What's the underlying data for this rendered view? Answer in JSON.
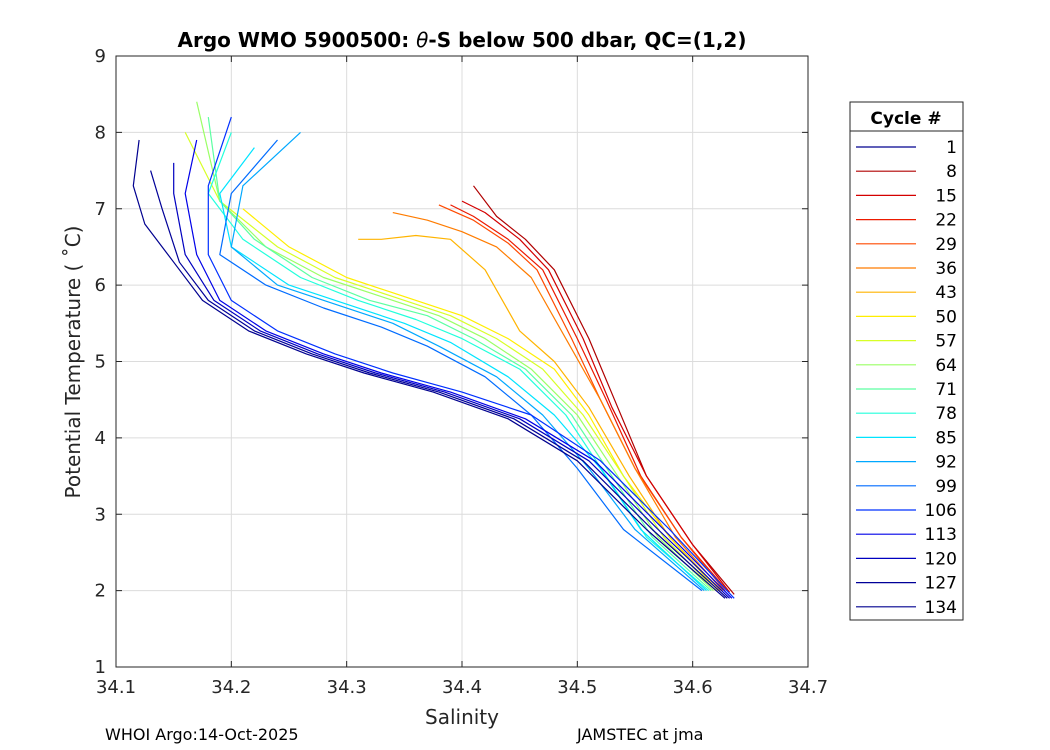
{
  "chart_data": {
    "type": "line",
    "title": "Argo WMO 5900500: θ-S below 500 dbar,  QC=(1,2)",
    "title_parts": {
      "prefix": "Argo WMO 5900500: ",
      "theta": "θ",
      "suffix": "-S below 500 dbar,  QC=(1,2)"
    },
    "xlabel": "Salinity",
    "ylabel": "Potential Temperature ( ˚C)",
    "xlim": [
      34.1,
      34.7
    ],
    "ylim": [
      1,
      9
    ],
    "xticks": [
      "34.1",
      "34.2",
      "34.3",
      "34.4",
      "34.5",
      "34.6",
      "34.7"
    ],
    "yticks": [
      "1",
      "2",
      "3",
      "4",
      "5",
      "6",
      "7",
      "8",
      "9"
    ],
    "grid": true,
    "legend_position": "right",
    "legend_title": "Cycle #",
    "legend": [
      {
        "label": "1",
        "color": "#00008f"
      },
      {
        "label": "8",
        "color": "#b00000"
      },
      {
        "label": "15",
        "color": "#d40000"
      },
      {
        "label": "22",
        "color": "#ec1a00"
      },
      {
        "label": "29",
        "color": "#ff4a00"
      },
      {
        "label": "36",
        "color": "#ff7c00"
      },
      {
        "label": "43",
        "color": "#ffb400"
      },
      {
        "label": "50",
        "color": "#ffee00"
      },
      {
        "label": "57",
        "color": "#d8ff26"
      },
      {
        "label": "64",
        "color": "#9aff65"
      },
      {
        "label": "71",
        "color": "#5cffa2"
      },
      {
        "label": "78",
        "color": "#22ffdc"
      },
      {
        "label": "85",
        "color": "#00e4ff"
      },
      {
        "label": "92",
        "color": "#00a8ff"
      },
      {
        "label": "99",
        "color": "#006cff"
      },
      {
        "label": "106",
        "color": "#0030ff"
      },
      {
        "label": "113",
        "color": "#0000e8"
      },
      {
        "label": "120",
        "color": "#0000c0"
      },
      {
        "label": "127",
        "color": "#000098"
      },
      {
        "label": "134",
        "color": "#00008f"
      }
    ],
    "series": [
      {
        "name": "8",
        "color": "#b00000",
        "x": [
          34.636,
          34.6,
          34.56,
          34.535,
          34.51,
          34.48,
          34.455,
          34.43,
          34.41
        ],
        "y": [
          1.95,
          2.6,
          3.5,
          4.4,
          5.3,
          6.2,
          6.6,
          6.9,
          7.3
        ]
      },
      {
        "name": "15",
        "color": "#d40000",
        "x": [
          34.632,
          34.6,
          34.56,
          34.53,
          34.505,
          34.475,
          34.45,
          34.42,
          34.4
        ],
        "y": [
          1.98,
          2.6,
          3.5,
          4.4,
          5.3,
          6.2,
          6.6,
          6.95,
          7.1
        ]
      },
      {
        "name": "22",
        "color": "#ec1a00",
        "x": [
          34.63,
          34.59,
          34.555,
          34.525,
          34.5,
          34.47,
          34.44,
          34.41,
          34.39
        ],
        "y": [
          2.0,
          2.7,
          3.5,
          4.5,
          5.3,
          6.2,
          6.6,
          6.9,
          7.05
        ]
      },
      {
        "name": "29",
        "color": "#ff4a00",
        "x": [
          34.628,
          34.59,
          34.55,
          34.52,
          34.495,
          34.465,
          34.44,
          34.41,
          34.38
        ],
        "y": [
          2.0,
          2.7,
          3.6,
          4.5,
          5.3,
          6.2,
          6.55,
          6.85,
          7.05
        ]
      },
      {
        "name": "36",
        "color": "#ff7c00",
        "x": [
          34.626,
          34.585,
          34.55,
          34.52,
          34.49,
          34.46,
          34.43,
          34.4,
          34.37,
          34.34
        ],
        "y": [
          2.0,
          2.7,
          3.6,
          4.5,
          5.3,
          6.1,
          6.5,
          6.7,
          6.85,
          6.95
        ]
      },
      {
        "name": "43",
        "color": "#ffb400",
        "x": [
          34.624,
          34.58,
          34.545,
          34.51,
          34.48,
          34.45,
          34.42,
          34.39,
          34.36,
          34.33,
          34.31
        ],
        "y": [
          2.0,
          2.7,
          3.5,
          4.4,
          5.0,
          5.4,
          6.2,
          6.6,
          6.65,
          6.6,
          6.6
        ]
      },
      {
        "name": "50",
        "color": "#ffee00",
        "x": [
          34.622,
          34.58,
          34.54,
          34.51,
          34.48,
          34.44,
          34.4,
          34.35,
          34.3,
          34.25,
          34.21
        ],
        "y": [
          2.0,
          2.7,
          3.5,
          4.3,
          4.9,
          5.3,
          5.6,
          5.85,
          6.1,
          6.5,
          7.0
        ]
      },
      {
        "name": "57",
        "color": "#d8ff26",
        "x": [
          34.62,
          34.575,
          34.54,
          34.505,
          34.47,
          34.43,
          34.39,
          34.34,
          34.29,
          34.24,
          34.19,
          34.16
        ],
        "y": [
          2.0,
          2.7,
          3.5,
          4.3,
          4.9,
          5.3,
          5.6,
          5.85,
          6.1,
          6.5,
          7.1,
          8.0
        ]
      },
      {
        "name": "64",
        "color": "#9aff65",
        "x": [
          34.618,
          34.57,
          34.535,
          34.5,
          34.46,
          34.42,
          34.38,
          34.33,
          34.28,
          34.23,
          34.19,
          34.17
        ],
        "y": [
          2.0,
          2.7,
          3.5,
          4.3,
          4.9,
          5.3,
          5.6,
          5.85,
          6.1,
          6.5,
          7.1,
          8.4
        ]
      },
      {
        "name": "71",
        "color": "#5cffa2",
        "x": [
          34.616,
          34.565,
          34.53,
          34.495,
          34.455,
          34.41,
          34.37,
          34.32,
          34.27,
          34.22,
          34.19,
          34.18
        ],
        "y": [
          2.0,
          2.7,
          3.5,
          4.3,
          4.9,
          5.3,
          5.6,
          5.8,
          6.1,
          6.6,
          7.1,
          8.2
        ]
      },
      {
        "name": "78",
        "color": "#22ffdc",
        "x": [
          34.614,
          34.56,
          34.525,
          34.49,
          34.45,
          34.4,
          34.36,
          34.31,
          34.26,
          34.21,
          34.18,
          34.2
        ],
        "y": [
          2.0,
          2.7,
          3.5,
          4.3,
          4.9,
          5.3,
          5.55,
          5.8,
          6.1,
          6.6,
          7.2,
          8.0
        ]
      },
      {
        "name": "85",
        "color": "#00e4ff",
        "x": [
          34.612,
          34.555,
          34.52,
          34.48,
          34.44,
          34.39,
          34.35,
          34.3,
          34.25,
          34.2,
          34.19,
          34.22
        ],
        "y": [
          2.0,
          2.8,
          3.6,
          4.3,
          4.8,
          5.25,
          5.5,
          5.75,
          6.0,
          6.5,
          7.2,
          7.8
        ]
      },
      {
        "name": "92",
        "color": "#00a8ff",
        "x": [
          34.61,
          34.55,
          34.51,
          34.47,
          34.43,
          34.38,
          34.34,
          34.29,
          34.24,
          34.2,
          34.21,
          34.26
        ],
        "y": [
          2.0,
          2.8,
          3.6,
          4.3,
          4.8,
          5.2,
          5.5,
          5.75,
          6.0,
          6.5,
          7.3,
          8.0
        ]
      },
      {
        "name": "99",
        "color": "#006cff",
        "x": [
          34.608,
          34.54,
          34.5,
          34.46,
          34.42,
          34.37,
          34.33,
          34.28,
          34.23,
          34.19,
          34.2,
          34.24
        ],
        "y": [
          2.0,
          2.8,
          3.6,
          4.3,
          4.8,
          5.2,
          5.45,
          5.7,
          6.0,
          6.4,
          7.2,
          7.9
        ]
      },
      {
        "name": "106",
        "color": "#0030ff",
        "x": [
          34.636,
          34.58,
          34.52,
          34.46,
          34.4,
          34.34,
          34.29,
          34.24,
          34.2,
          34.18,
          34.18,
          34.2
        ],
        "y": [
          1.9,
          2.8,
          3.7,
          4.3,
          4.6,
          4.85,
          5.1,
          5.4,
          5.8,
          6.4,
          7.3,
          8.2
        ]
      },
      {
        "name": "113",
        "color": "#0000e8",
        "x": [
          34.634,
          34.575,
          34.515,
          34.455,
          34.39,
          34.33,
          34.28,
          34.23,
          34.19,
          34.17,
          34.16,
          34.17
        ],
        "y": [
          1.9,
          2.8,
          3.7,
          4.25,
          4.6,
          4.85,
          5.1,
          5.4,
          5.8,
          6.4,
          7.2,
          7.9
        ]
      },
      {
        "name": "120",
        "color": "#0000c0",
        "x": [
          34.632,
          34.57,
          34.51,
          34.45,
          34.385,
          34.325,
          34.275,
          34.225,
          34.185,
          34.16,
          34.15,
          34.15
        ],
        "y": [
          1.9,
          2.8,
          3.7,
          4.25,
          4.6,
          4.85,
          5.1,
          5.4,
          5.8,
          6.4,
          7.2,
          7.6
        ]
      },
      {
        "name": "127",
        "color": "#000098",
        "x": [
          34.63,
          34.565,
          34.505,
          34.445,
          34.38,
          34.32,
          34.27,
          34.22,
          34.18,
          34.155,
          34.14,
          34.13
        ],
        "y": [
          1.9,
          2.8,
          3.7,
          4.25,
          4.6,
          4.85,
          5.1,
          5.4,
          5.8,
          6.3,
          7.0,
          7.5
        ]
      },
      {
        "name": "134",
        "color": "#00008f",
        "x": [
          34.628,
          34.56,
          34.5,
          34.44,
          34.375,
          34.315,
          34.265,
          34.215,
          34.175,
          34.15,
          34.125,
          34.115,
          34.12
        ],
        "y": [
          1.9,
          2.8,
          3.7,
          4.25,
          4.6,
          4.85,
          5.1,
          5.4,
          5.8,
          6.3,
          6.8,
          7.3,
          7.9
        ]
      }
    ]
  },
  "footer": {
    "left": "WHOI Argo:14-Oct-2025",
    "right": "JAMSTEC at jma"
  }
}
